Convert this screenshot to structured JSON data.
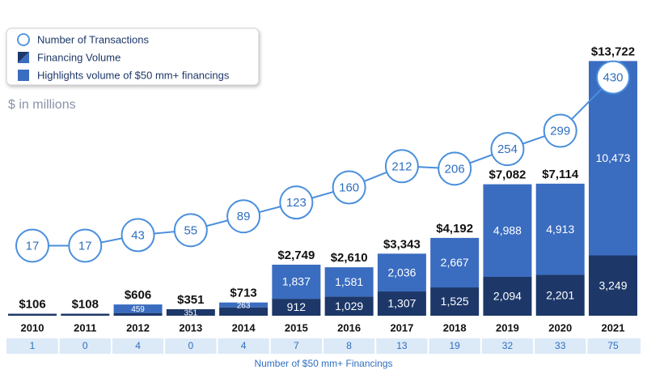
{
  "chart_data": {
    "type": "stacked-bar-line",
    "subtitle": "$ in millions",
    "categories": [
      "2010",
      "2011",
      "2012",
      "2013",
      "2014",
      "2015",
      "2016",
      "2017",
      "2018",
      "2019",
      "2020",
      "2021"
    ],
    "series": [
      {
        "name": "Financing Volume",
        "color": "#1d3768",
        "values": [
          106,
          108,
          147,
          351,
          450,
          912,
          1029,
          1307,
          1525,
          2094,
          2201,
          3249
        ],
        "value_labels": [
          null,
          null,
          null,
          "351",
          null,
          "912",
          "1,029",
          "1,307",
          "1,525",
          "2,094",
          "2,201",
          "3,249"
        ]
      },
      {
        "name": "Highlights volume of $50 mm+ financings",
        "color": "#3a6cc0",
        "values": [
          0,
          0,
          459,
          0,
          263,
          1837,
          1581,
          2036,
          2667,
          4988,
          4913,
          10473
        ],
        "value_labels": [
          null,
          null,
          "459",
          null,
          "263",
          "1,837",
          "1,581",
          "2,036",
          "2,667",
          "4,988",
          "4,913",
          "10,473"
        ]
      },
      {
        "name": "Number of Transactions",
        "color": "#4a8fdc",
        "axis": "y2",
        "values": [
          17,
          17,
          43,
          55,
          89,
          123,
          160,
          212,
          206,
          254,
          299,
          430
        ]
      }
    ],
    "totals": {
      "values": [
        106,
        108,
        606,
        351,
        713,
        2749,
        2610,
        3343,
        4192,
        7082,
        7114,
        13722
      ],
      "value_labels": [
        "$106",
        "$108",
        "$606",
        "$351",
        "$713",
        "$2,749",
        "$2,610",
        "$3,343",
        "$4,192",
        "$7,082",
        "$7,114",
        "$13,722"
      ]
    },
    "ylim": [
      0,
      14000
    ],
    "y2lim": [
      0,
      600
    ],
    "financings_50mm": {
      "label": "Number of $50 mm+ Financings",
      "values": [
        1,
        0,
        4,
        0,
        4,
        7,
        8,
        13,
        19,
        32,
        33,
        75
      ]
    }
  }
}
